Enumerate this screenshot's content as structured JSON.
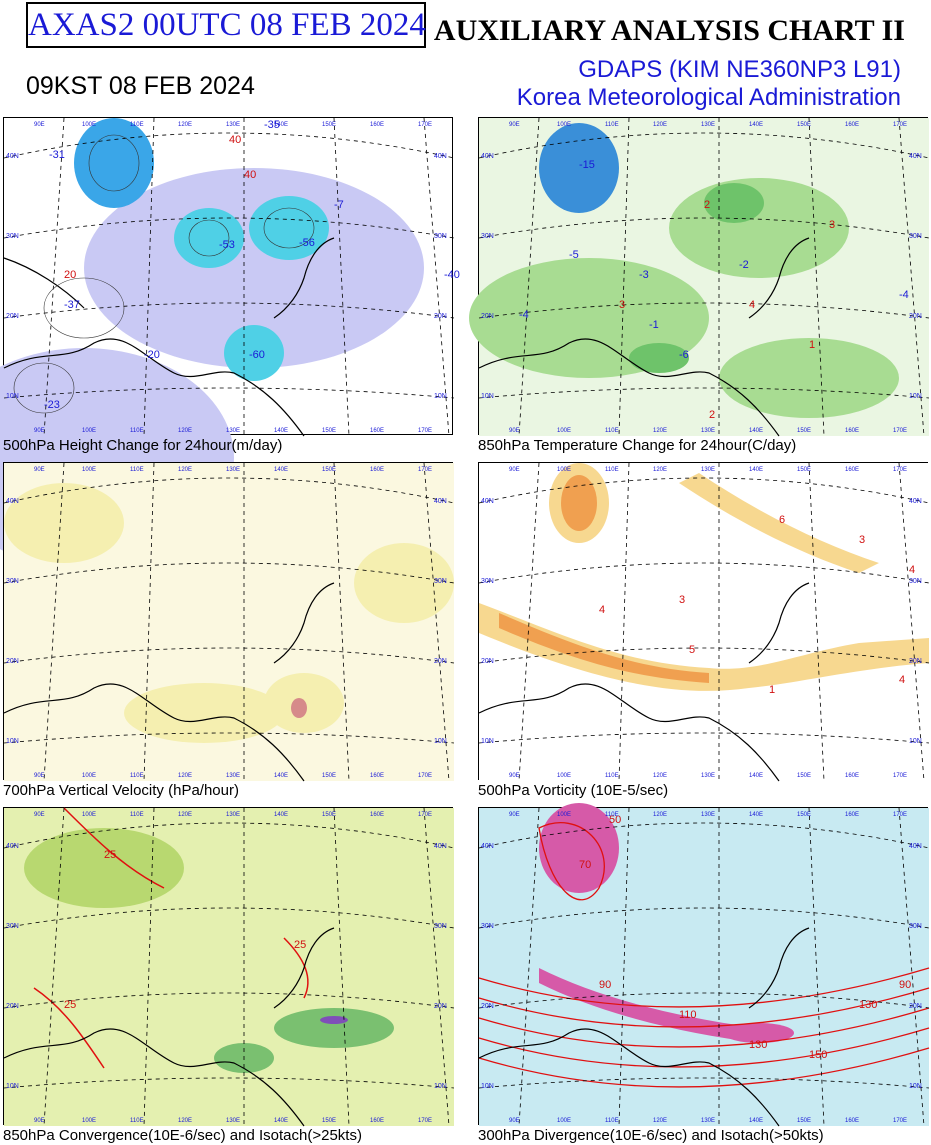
{
  "header": {
    "product": "AXAS2  00UTC 08 FEB 2024",
    "local_time": "09KST 08 FEB 2024",
    "chart_title": "AUXILIARY ANALYSIS CHART II",
    "model": "GDAPS (KIM NE360NP3 L91)",
    "agency": "Korea Meteorological Administration"
  },
  "panels": [
    {
      "caption": "500hPa Height Change for 24hour(m/day)",
      "labels": [
        "-37",
        "-23",
        "-20",
        "-53",
        "-60",
        "-56",
        "-7",
        "40",
        "-35",
        "40",
        "20",
        "-40",
        "-31"
      ]
    },
    {
      "caption": "850hPa Temperature Change for 24hour(C/day)",
      "labels": [
        "-15",
        "-4",
        "-5",
        "-3",
        "-2",
        "-1",
        "3",
        "2",
        "4",
        "1",
        "-6",
        "2",
        "3",
        "-4"
      ]
    },
    {
      "caption": "700hPa Vertical Velocity (hPa/hour)",
      "labels": []
    },
    {
      "caption": "500hPa Vorticity (10E-5/sec)",
      "labels": [
        "3",
        "4",
        "5",
        "1",
        "3",
        "4",
        "4",
        "6"
      ]
    },
    {
      "caption": "850hPa Convergence(10E-6/sec) and Isotach(>25kts)",
      "labels": [
        "25",
        "25",
        "25"
      ]
    },
    {
      "caption": "300hPa Divergence(10E-6/sec) and Isotach(>50kts)",
      "labels": [
        "50",
        "70",
        "90",
        "110",
        "130",
        "150",
        "130",
        "90"
      ]
    }
  ],
  "lat_labels": [
    "40N",
    "30N",
    "20N",
    "10N"
  ],
  "lon_labels": [
    "90E",
    "100E",
    "110E",
    "120E",
    "130E",
    "140E",
    "150E",
    "160E",
    "170E"
  ],
  "colors": {
    "title_blue": "#1a1ad6",
    "height_fill": "#b8b8f0",
    "height_strong": "#2fb4e6",
    "temp_green": "#8fcf7a",
    "temp_blue": "#3a8fd8",
    "vv_yellow": "#f6efb0",
    "vort_orange": "#f3b35a",
    "conv_green": "#c7e08a",
    "div_cyan": "#9fdbeb",
    "div_magenta": "#d65aa8",
    "isotach_red": "#e01010"
  }
}
